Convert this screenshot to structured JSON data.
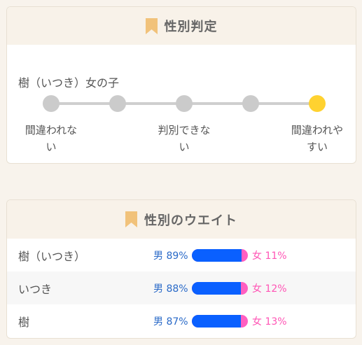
{
  "judgement": {
    "title": "性別判定",
    "subject": "樹（いつき）女の子",
    "scale_labels": [
      "間違われな\nい",
      "判別できな\nい",
      "間違われや\nすい"
    ],
    "active_index": 4
  },
  "weight": {
    "title": "性別のウエイト",
    "rows": [
      {
        "name": "樹（いつき）",
        "male_label": "男 89%",
        "female_label": "女 11%",
        "male_pct": 89
      },
      {
        "name": "いつき",
        "male_label": "男 88%",
        "female_label": "女 12%",
        "male_pct": 88
      },
      {
        "name": "樹",
        "male_label": "男 87%",
        "female_label": "女 13%",
        "male_pct": 87
      }
    ]
  },
  "colors": {
    "accent_bookmark": "#f1c27a",
    "active_dot": "#ffd230",
    "male": "#0a60ff",
    "female": "#ff5fc1"
  },
  "icons": {
    "title_icon": "bookmark-icon"
  }
}
